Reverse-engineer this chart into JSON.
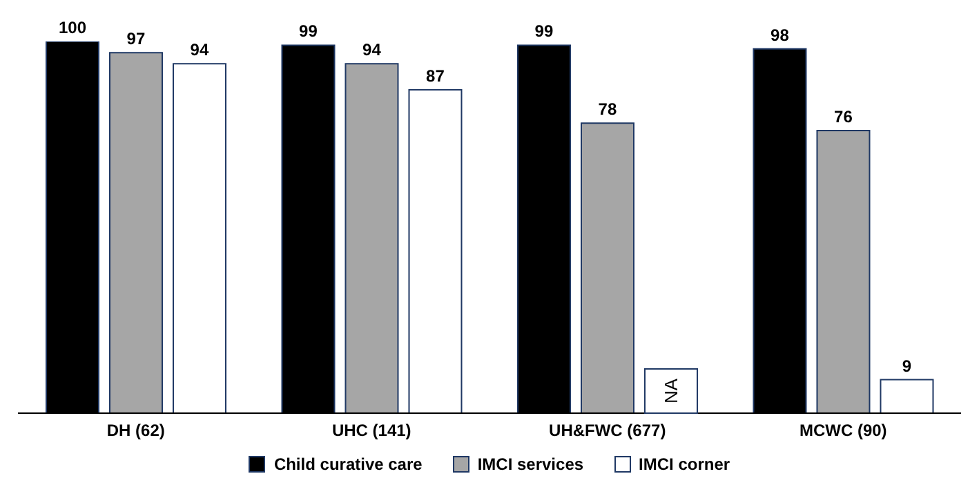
{
  "chart_data": {
    "type": "bar",
    "categories": [
      "DH (62)",
      "UHC (141)",
      "UH&FWC (677)",
      "MCWC (90)"
    ],
    "series": [
      {
        "name": "Child curative care",
        "color": "#000000",
        "values": [
          100,
          99,
          99,
          98
        ],
        "value_labels": [
          "100",
          "99",
          "99",
          "98"
        ]
      },
      {
        "name": "IMCI services",
        "color": "#a6a6a6",
        "values": [
          97,
          94,
          78,
          76
        ],
        "value_labels": [
          "97",
          "94",
          "78",
          "76"
        ]
      },
      {
        "name": "IMCI corner",
        "color": "#ffffff",
        "values": [
          94,
          87,
          null,
          9
        ],
        "value_labels": [
          "94",
          "87",
          "NA",
          "9"
        ]
      }
    ],
    "legend": "bottom",
    "grid": false
  }
}
